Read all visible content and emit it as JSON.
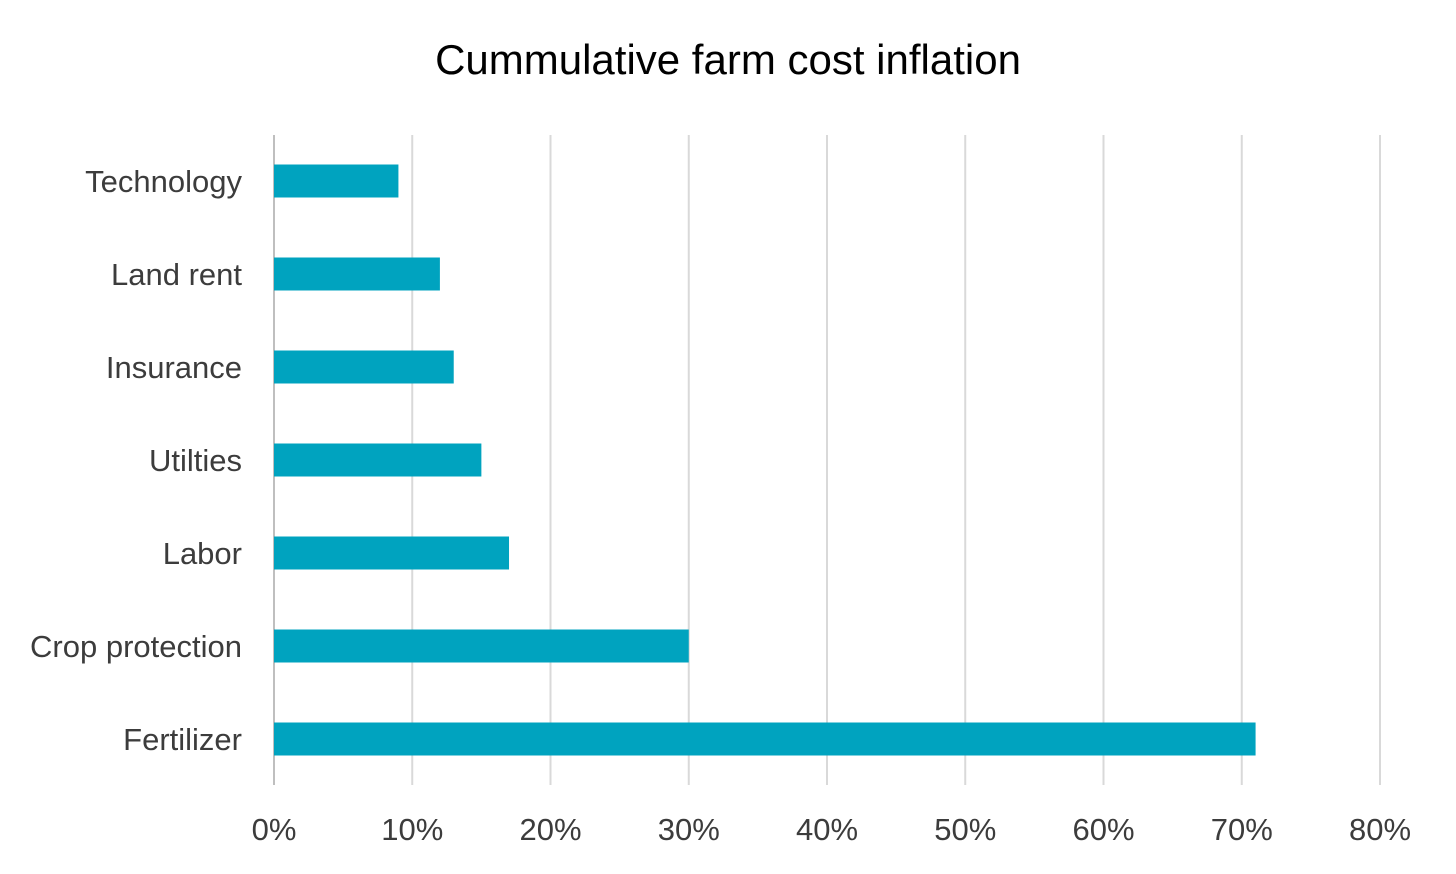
{
  "chart_data": {
    "type": "bar",
    "orientation": "horizontal",
    "title": "Cummulative farm cost inflation",
    "xlabel": "",
    "ylabel": "",
    "categories": [
      "Technology",
      "Land rent",
      "Insurance",
      "Utilties",
      "Labor",
      "Crop protection",
      "Fertilizer"
    ],
    "series": [
      {
        "values": [
          9,
          12,
          13,
          15,
          17,
          30,
          71
        ]
      }
    ],
    "xlim": [
      0,
      80
    ],
    "x_ticks": [
      0,
      10,
      20,
      30,
      40,
      50,
      60,
      70,
      80
    ],
    "x_tick_labels": [
      "0%",
      "10%",
      "20%",
      "30%",
      "40%",
      "50%",
      "60%",
      "70%",
      "80%"
    ],
    "grid": "vertical",
    "legend": "none",
    "colors": {
      "bar": "#00a3bf",
      "grid": "#d9d9d9",
      "axis": "#bfbfbf",
      "text": "#3c3c3c",
      "title": "#000000"
    }
  }
}
